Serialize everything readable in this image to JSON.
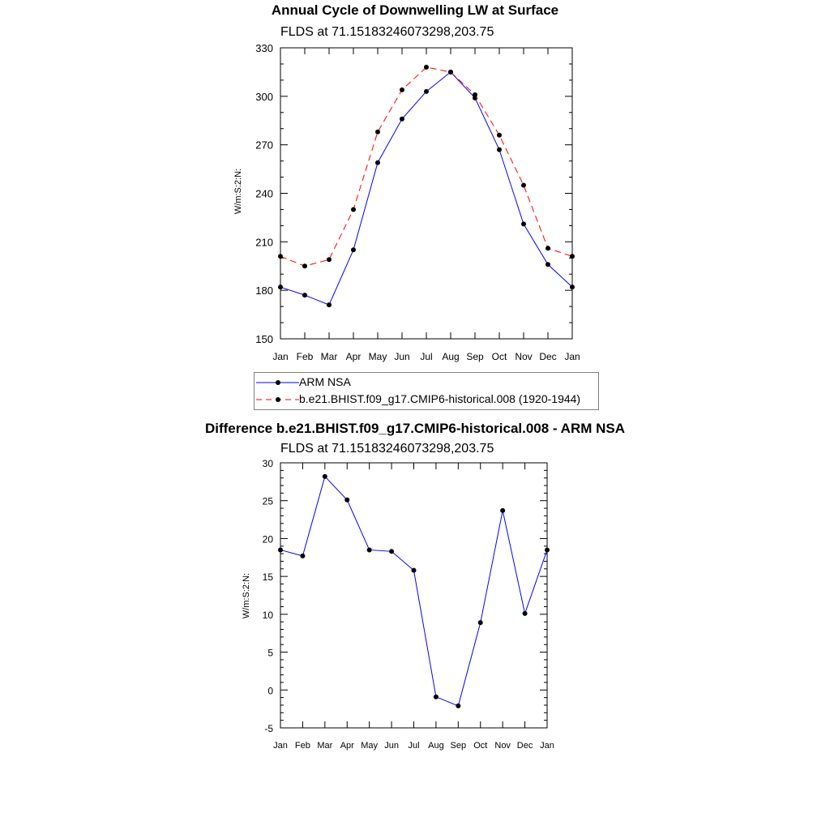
{
  "colors": {
    "obs": "#0000ff",
    "model": "#ff0000",
    "diff": "#0000ff",
    "marker": "#000000"
  },
  "chart_data": [
    {
      "type": "line",
      "title": "Annual Cycle of Downwelling LW at Surface",
      "subtitle": "FLDS at 71.15183246073298,203.75",
      "ylabel": "W/m:S:2:N:",
      "categories": [
        "Jan",
        "Feb",
        "Mar",
        "Apr",
        "May",
        "Jun",
        "Jul",
        "Aug",
        "Sep",
        "Oct",
        "Nov",
        "Dec",
        "Jan"
      ],
      "ylim": [
        150,
        330
      ],
      "yticks": [
        150,
        180,
        210,
        240,
        270,
        300,
        330
      ],
      "series": [
        {
          "name": "ARM NSA",
          "style": "solid",
          "color": "#0000ff",
          "values": [
            182,
            177,
            171,
            205,
            259,
            286,
            303,
            315,
            299,
            267,
            221,
            196,
            182
          ]
        },
        {
          "name": "b.e21.BHIST.f09_g17.CMIP6-historical.008 (1920-1944)",
          "style": "dashed",
          "color": "#ff0000",
          "values": [
            201,
            195,
            199,
            230,
            278,
            304,
            318,
            315,
            301,
            276,
            245,
            206,
            201
          ]
        }
      ],
      "legend": [
        "ARM NSA",
        "b.e21.BHIST.f09_g17.CMIP6-historical.008 (1920-1944)"
      ]
    },
    {
      "type": "line",
      "title": "Difference b.e21.BHIST.f09_g17.CMIP6-historical.008 - ARM NSA",
      "subtitle": "FLDS at 71.15183246073298,203.75",
      "ylabel": "W/m:S:2:N:",
      "categories": [
        "Jan",
        "Feb",
        "Mar",
        "Apr",
        "May",
        "Jun",
        "Jul",
        "Aug",
        "Sep",
        "Oct",
        "Nov",
        "Dec",
        "Jan"
      ],
      "ylim": [
        -5,
        30
      ],
      "yticks": [
        -5,
        0,
        5,
        10,
        15,
        20,
        25,
        30
      ],
      "series": [
        {
          "name": "difference",
          "style": "solid",
          "color": "#0000ff",
          "values": [
            18.5,
            17.7,
            28.2,
            25.1,
            18.5,
            18.3,
            15.8,
            -0.9,
            -2.1,
            8.9,
            23.7,
            10.1,
            18.5
          ]
        }
      ]
    }
  ]
}
